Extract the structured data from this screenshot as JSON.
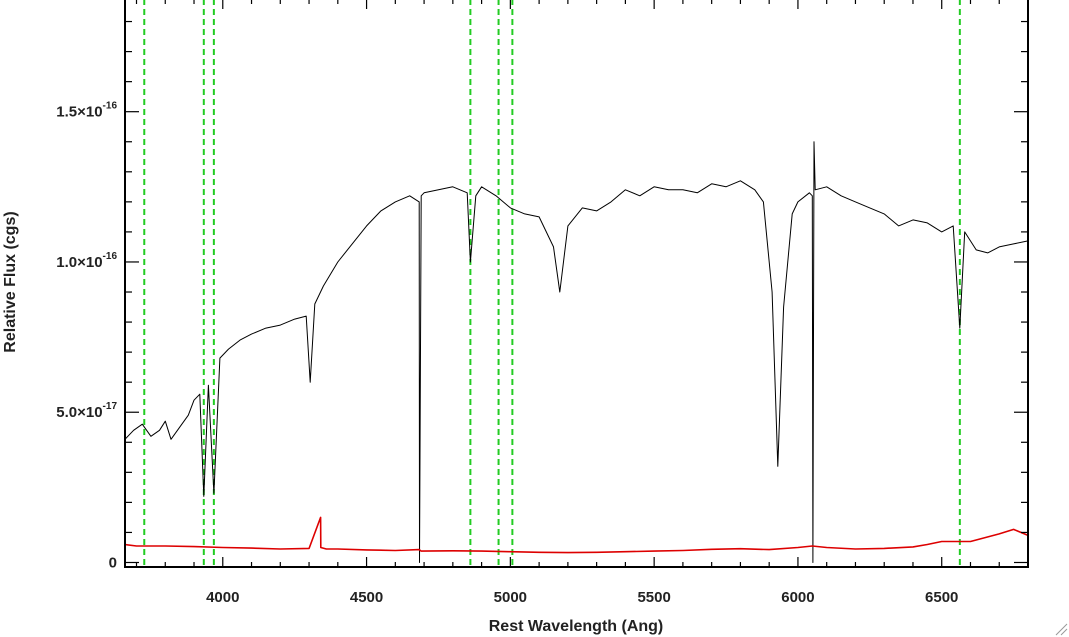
{
  "chart_data": {
    "type": "line",
    "xlabel": "Rest Wavelength (Ang)",
    "ylabel": "Relative Flux (cgs)",
    "xlim": [
      3660,
      6800
    ],
    "ylim": [
      -1.5e-18,
      1.875e-16
    ],
    "grid": false,
    "x_ticks": [
      {
        "value": 4000,
        "label": "4000"
      },
      {
        "value": 4500,
        "label": "4500"
      },
      {
        "value": 5000,
        "label": "5000"
      },
      {
        "value": 5500,
        "label": "5500"
      },
      {
        "value": 6000,
        "label": "6000"
      },
      {
        "value": 6500,
        "label": "6500"
      }
    ],
    "y_ticks": [
      {
        "value": 0,
        "mantissa": "0",
        "exponent": ""
      },
      {
        "value": 5e-17,
        "mantissa": "5.0×10",
        "exponent": "-17"
      },
      {
        "value": 1e-16,
        "mantissa": "1.0×10",
        "exponent": "-16"
      },
      {
        "value": 1.5e-16,
        "mantissa": "1.5×10",
        "exponent": "-16"
      }
    ],
    "vertical_lines": {
      "color": "#22cc22",
      "x": [
        3727,
        3934,
        3969,
        4861,
        4959,
        5007,
        6563
      ]
    },
    "series": [
      {
        "color": "#000000",
        "x": [
          3660,
          3690,
          3720,
          3750,
          3780,
          3800,
          3820,
          3850,
          3880,
          3900,
          3920,
          3934,
          3950,
          3969,
          3990,
          4020,
          4060,
          4100,
          4150,
          4200,
          4250,
          4290,
          4304,
          4320,
          4350,
          4400,
          4450,
          4500,
          4550,
          4600,
          4650,
          4683,
          4684,
          4690,
          4700,
          4750,
          4800,
          4850,
          4861,
          4880,
          4900,
          4950,
          5000,
          5050,
          5100,
          5150,
          5172,
          5200,
          5250,
          5300,
          5350,
          5400,
          5450,
          5500,
          5550,
          5600,
          5650,
          5700,
          5750,
          5800,
          5850,
          5880,
          5910,
          5930,
          5950,
          5980,
          6000,
          6040,
          6050,
          6052,
          6056,
          6060,
          6100,
          6150,
          6200,
          6250,
          6300,
          6350,
          6400,
          6450,
          6500,
          6540,
          6563,
          6580,
          6620,
          6660,
          6700,
          6750,
          6800
        ],
        "y": [
          4.1e-17,
          4.4e-17,
          4.6e-17,
          4.2e-17,
          4.4e-17,
          4.7e-17,
          4.1e-17,
          4.5e-17,
          4.9e-17,
          5.4e-17,
          5.6e-17,
          2.2e-17,
          5.9e-17,
          2.3e-17,
          6.8e-17,
          7.1e-17,
          7.4e-17,
          7.6e-17,
          7.8e-17,
          7.9e-17,
          8.1e-17,
          8.2e-17,
          6e-17,
          8.6e-17,
          9.2e-17,
          1e-16,
          1.06e-16,
          1.12e-16,
          1.17e-16,
          1.2e-16,
          1.22e-16,
          1.2e-16,
          0.0,
          1.22e-16,
          1.23e-16,
          1.24e-16,
          1.25e-16,
          1.23e-16,
          1e-16,
          1.22e-16,
          1.25e-16,
          1.22e-16,
          1.18e-16,
          1.16e-16,
          1.15e-16,
          1.05e-16,
          9e-17,
          1.12e-16,
          1.18e-16,
          1.17e-16,
          1.2e-16,
          1.24e-16,
          1.22e-16,
          1.25e-16,
          1.24e-16,
          1.24e-16,
          1.23e-16,
          1.26e-16,
          1.25e-16,
          1.27e-16,
          1.24e-16,
          1.2e-16,
          9e-17,
          3.2e-17,
          8.5e-17,
          1.16e-16,
          1.2e-16,
          1.23e-16,
          1.22e-16,
          0.0,
          1.4e-16,
          1.24e-16,
          1.25e-16,
          1.22e-16,
          1.2e-16,
          1.18e-16,
          1.16e-16,
          1.12e-16,
          1.14e-16,
          1.13e-16,
          1.1e-16,
          1.12e-16,
          7.8e-17,
          1.1e-16,
          1.04e-16,
          1.03e-16,
          1.05e-16,
          1.06e-16,
          1.07e-16
        ]
      },
      {
        "color": "#dd0000",
        "x": [
          3660,
          3700,
          3800,
          3900,
          4000,
          4100,
          4200,
          4300,
          4340,
          4341,
          4360,
          4400,
          4500,
          4600,
          4683,
          4690,
          4800,
          4900,
          5000,
          5100,
          5200,
          5300,
          5400,
          5500,
          5600,
          5700,
          5800,
          5900,
          6000,
          6050,
          6100,
          6200,
          6300,
          6400,
          6450,
          6500,
          6600,
          6700,
          6750,
          6800
        ],
        "y": [
          6e-18,
          5.5e-18,
          5.5e-18,
          5.3e-18,
          5e-18,
          4.8e-18,
          4.5e-18,
          4.7e-18,
          1.5e-17,
          5e-18,
          4.5e-18,
          4.5e-18,
          4.2e-18,
          4e-18,
          4.3e-18,
          3.8e-18,
          3.9e-18,
          3.8e-18,
          3.6e-18,
          3.4e-18,
          3.3e-18,
          3.4e-18,
          3.6e-18,
          3.8e-18,
          4e-18,
          4.4e-18,
          4.6e-18,
          4.3e-18,
          5e-18,
          5.5e-18,
          5e-18,
          4.5e-18,
          4.7e-18,
          5.2e-18,
          6e-18,
          7e-18,
          7e-18,
          9.5e-18,
          1.1e-17,
          9e-18
        ]
      }
    ]
  }
}
